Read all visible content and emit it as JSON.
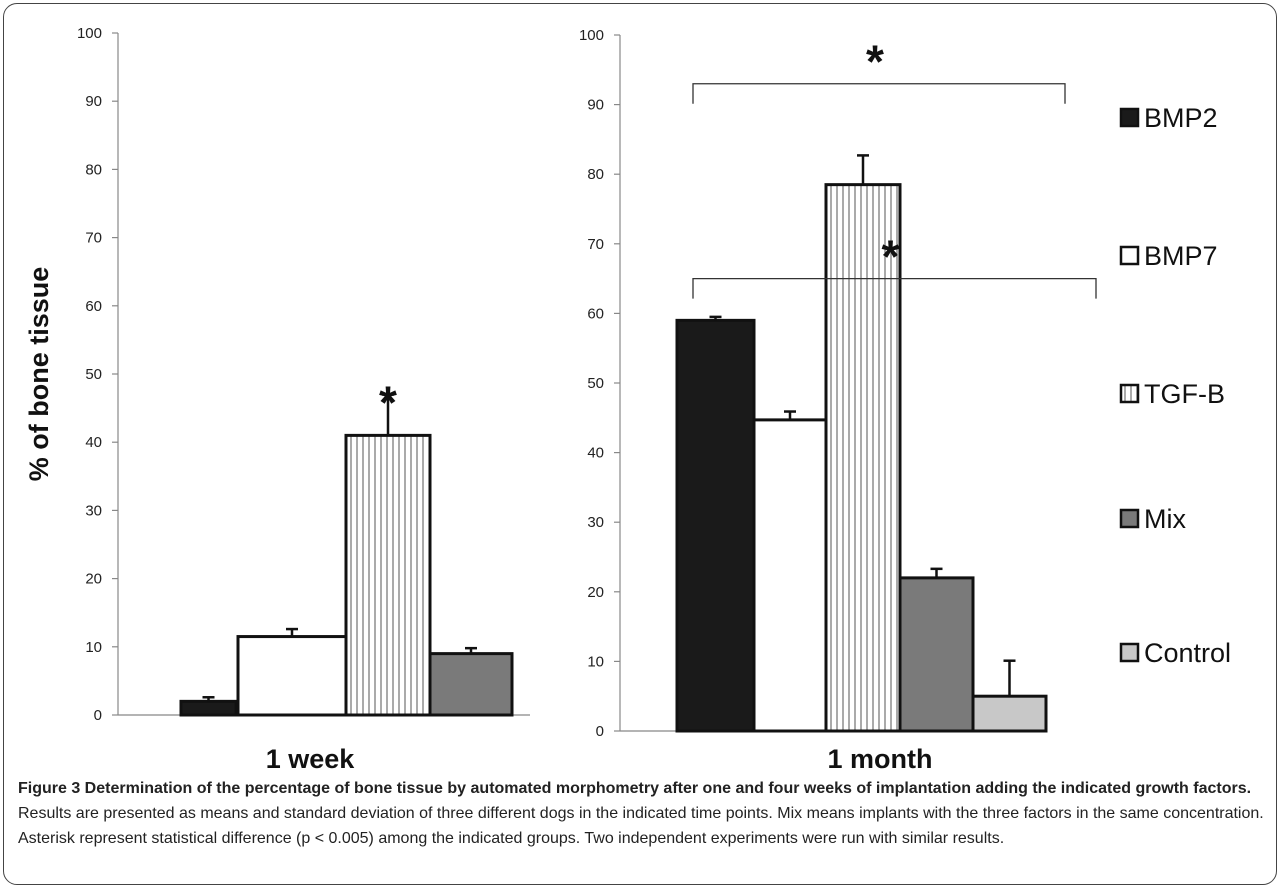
{
  "chart_data": [
    {
      "type": "bar",
      "xlabel": "1 week",
      "ylabel": "% of bone tissue",
      "ylim": [
        0,
        100
      ],
      "yticks": [
        "0",
        "10",
        "20",
        "30",
        "40",
        "50",
        "60",
        "70",
        "80",
        "90",
        "100"
      ],
      "categories": [
        "BMP2",
        "BMP7",
        "TGF-B",
        "Mix"
      ],
      "values": [
        2,
        11.5,
        41,
        9
      ],
      "errors": [
        0.6,
        1.1,
        6,
        0.8
      ],
      "annotations": [
        {
          "text": "*",
          "category": "TGF-B"
        }
      ]
    },
    {
      "type": "bar",
      "xlabel": "1 month",
      "ylim": [
        0,
        100
      ],
      "yticks": [
        "0",
        "10",
        "20",
        "30",
        "40",
        "50",
        "60",
        "70",
        "80",
        "90",
        "100"
      ],
      "categories": [
        "BMP2",
        "BMP7",
        "TGF-B",
        "Mix",
        "Control"
      ],
      "values": [
        59,
        44.7,
        78.5,
        22,
        5
      ],
      "errors": [
        0.5,
        1.2,
        4.2,
        1.3,
        5.1
      ],
      "annotations": [
        {
          "text": "*",
          "from": "BMP2",
          "to": "Control",
          "level": 65
        },
        {
          "text": "*",
          "from": "BMP2",
          "to": "Mix",
          "level": 93
        }
      ]
    }
  ],
  "legend": {
    "placement": "right",
    "items": [
      {
        "label": "BMP2",
        "fill": "#1a1a1a",
        "pattern": "solid"
      },
      {
        "label": "BMP7",
        "fill": "#ffffff",
        "pattern": "solid"
      },
      {
        "label": "TGF-B",
        "fill": "#ffffff",
        "pattern": "vertical-lines"
      },
      {
        "label": "Mix",
        "fill": "#7a7a7a",
        "pattern": "solid"
      },
      {
        "label": "Control",
        "fill": "#c8c8c8",
        "pattern": "solid"
      }
    ]
  },
  "caption": {
    "lead": "Figure 3 Determination of the percentage of bone tissue by automated morphometry after one and four weeks of implantation adding the indicated growth factors.",
    "body": " Results are presented as means and standard deviation of three different dogs in the indicated time points. Mix means implants with the three factors in the same concentration. Asterisk represent statistical difference (p < 0.005) among the indicated groups. Two independent experiments were run with similar results."
  }
}
